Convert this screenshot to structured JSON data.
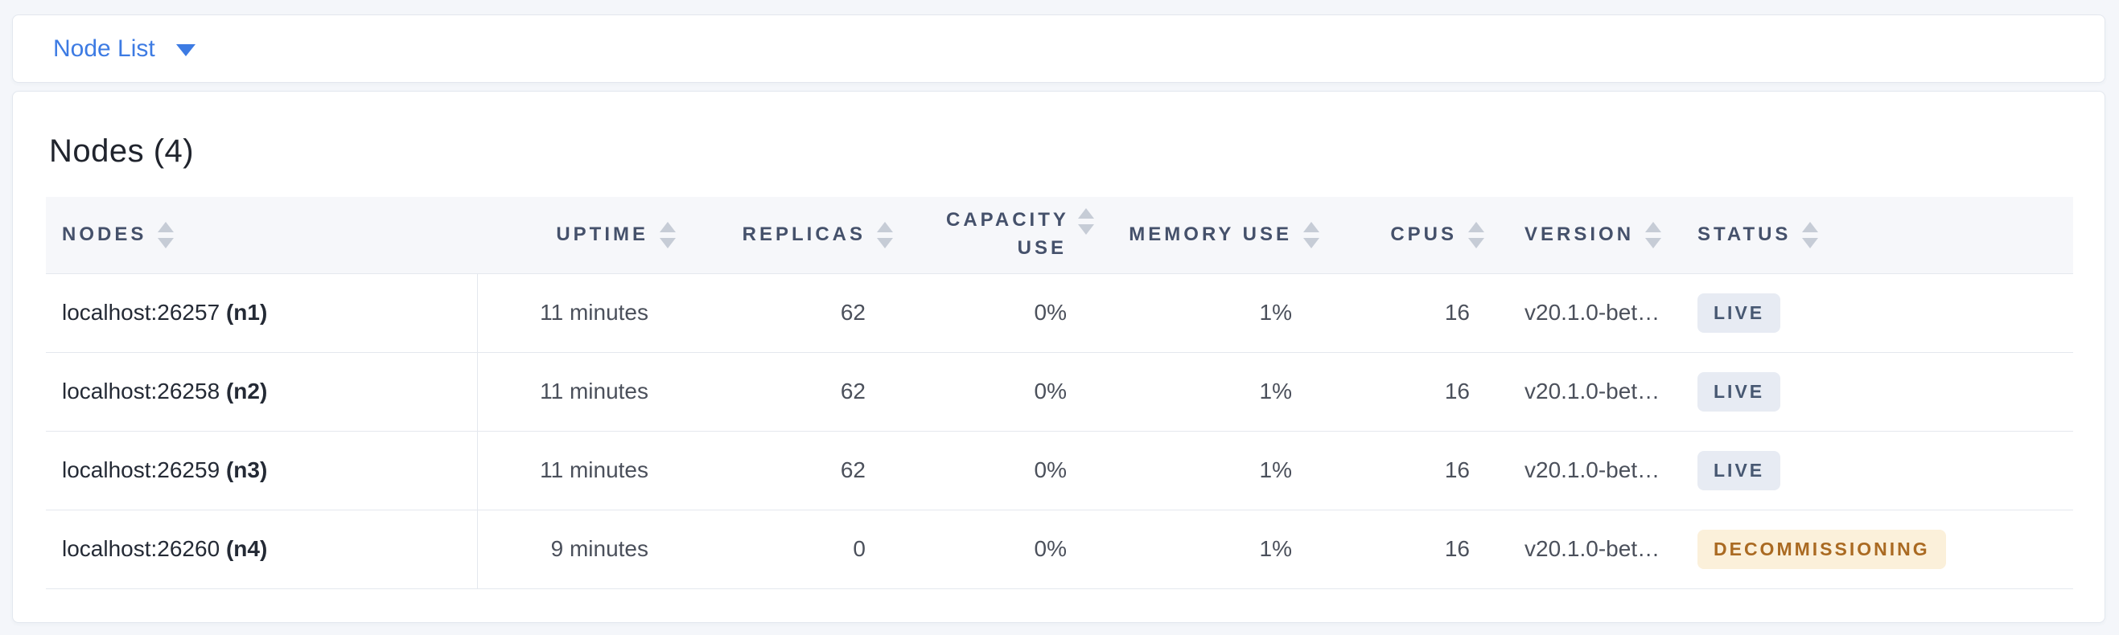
{
  "selector_bar": {
    "label": "Node List"
  },
  "card": {
    "title": "Nodes (4)",
    "table": {
      "columns": [
        {
          "key": "nodes",
          "label": "Nodes"
        },
        {
          "key": "uptime",
          "label": "Uptime"
        },
        {
          "key": "replicas",
          "label": "Replicas"
        },
        {
          "key": "capacity_use",
          "label": "Capacity Use"
        },
        {
          "key": "memory_use",
          "label": "Memory Use"
        },
        {
          "key": "cpus",
          "label": "CPUs"
        },
        {
          "key": "version",
          "label": "Version"
        },
        {
          "key": "status",
          "label": "Status"
        }
      ],
      "rows": [
        {
          "node_address": "localhost:26257",
          "node_id": "(n1)",
          "uptime": "11 minutes",
          "replicas": "62",
          "capacity_use": "0%",
          "memory_use": "1%",
          "cpus": "16",
          "version": "v20.1.0-bet…",
          "status": "LIVE",
          "status_type": "live"
        },
        {
          "node_address": "localhost:26258",
          "node_id": "(n2)",
          "uptime": "11 minutes",
          "replicas": "62",
          "capacity_use": "0%",
          "memory_use": "1%",
          "cpus": "16",
          "version": "v20.1.0-bet…",
          "status": "LIVE",
          "status_type": "live"
        },
        {
          "node_address": "localhost:26259",
          "node_id": "(n3)",
          "uptime": "11 minutes",
          "replicas": "62",
          "capacity_use": "0%",
          "memory_use": "1%",
          "cpus": "16",
          "version": "v20.1.0-bet…",
          "status": "LIVE",
          "status_type": "live"
        },
        {
          "node_address": "localhost:26260",
          "node_id": "(n4)",
          "uptime": "9 minutes",
          "replicas": "0",
          "capacity_use": "0%",
          "memory_use": "1%",
          "cpus": "16",
          "version": "v20.1.0-bet…",
          "status": "DECOMMISSIONING",
          "status_type": "decommissioning"
        }
      ]
    }
  },
  "colors": {
    "accent_blue": "#3d7be3",
    "page_background": "#f4f6fa",
    "live_badge_bg": "#e7ebf3",
    "live_badge_text": "#475872",
    "decommissioning_badge_bg": "#fbf0da",
    "decommissioning_badge_text": "#aa6a22"
  }
}
